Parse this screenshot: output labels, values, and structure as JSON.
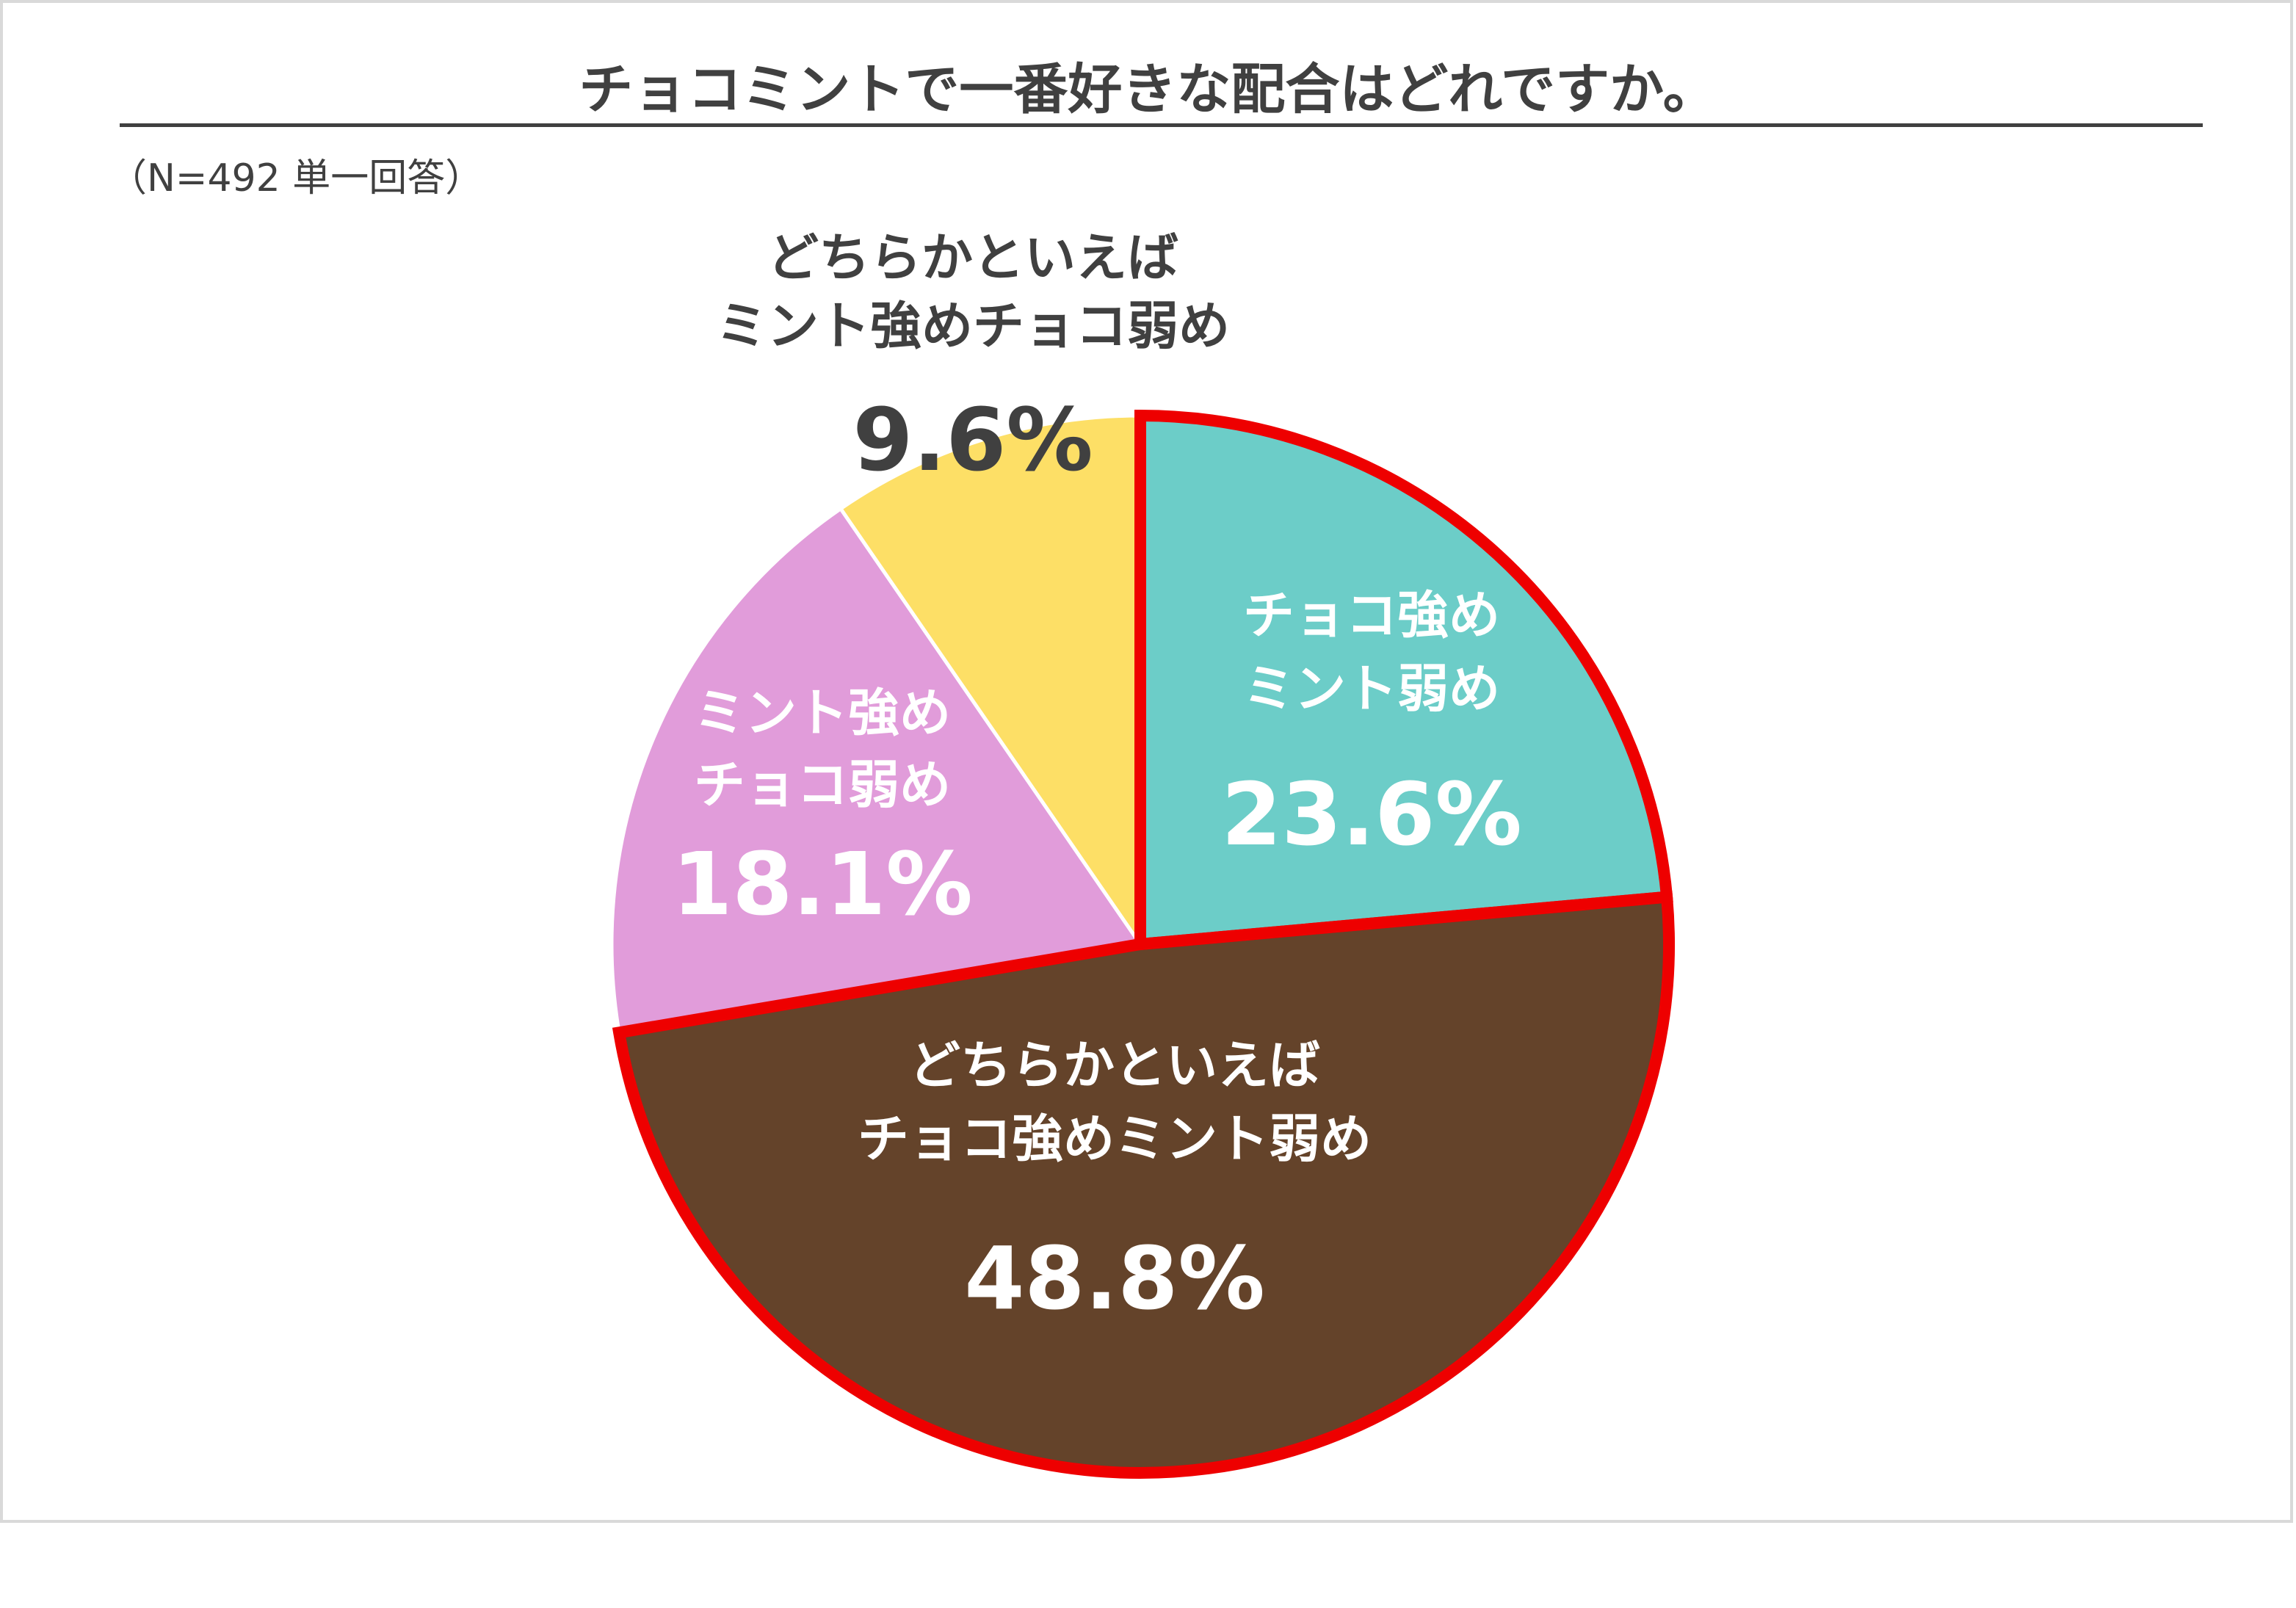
{
  "title": "チョコミントで一番好きな配合はどれですか。",
  "subtitle": "（N=492 単一回答）",
  "chart_data": {
    "type": "pie",
    "title": "チョコミントで一番好きな配合はどれですか。",
    "note": "（N=492 単一回答）",
    "start_angle_deg": 0,
    "direction": "clockwise",
    "slices": [
      {
        "label_line1": "チョコ強め",
        "label_line2": "ミント弱め",
        "value": 23.6,
        "value_label": "23.6%",
        "color": "#6ccdc8",
        "highlight": true,
        "label_color": "#ffffff"
      },
      {
        "label_line1": "どちらかといえば",
        "label_line2": "チョコ強めミント弱め",
        "value": 48.8,
        "value_label": "48.8%",
        "color": "#64432a",
        "highlight": true,
        "label_color": "#ffffff"
      },
      {
        "label_line1": "ミント強め",
        "label_line2": "チョコ弱め",
        "value": 18.1,
        "value_label": "18.1%",
        "color": "#e19cda",
        "highlight": false,
        "label_color": "#ffffff"
      },
      {
        "label_line1": "どちらかといえば",
        "label_line2": "ミント強めチョコ弱め",
        "value": 9.6,
        "value_label": "9.6%",
        "color": "#fddf66",
        "highlight": false,
        "label_color": "#404040"
      }
    ],
    "highlight_color": "#ee0000"
  }
}
